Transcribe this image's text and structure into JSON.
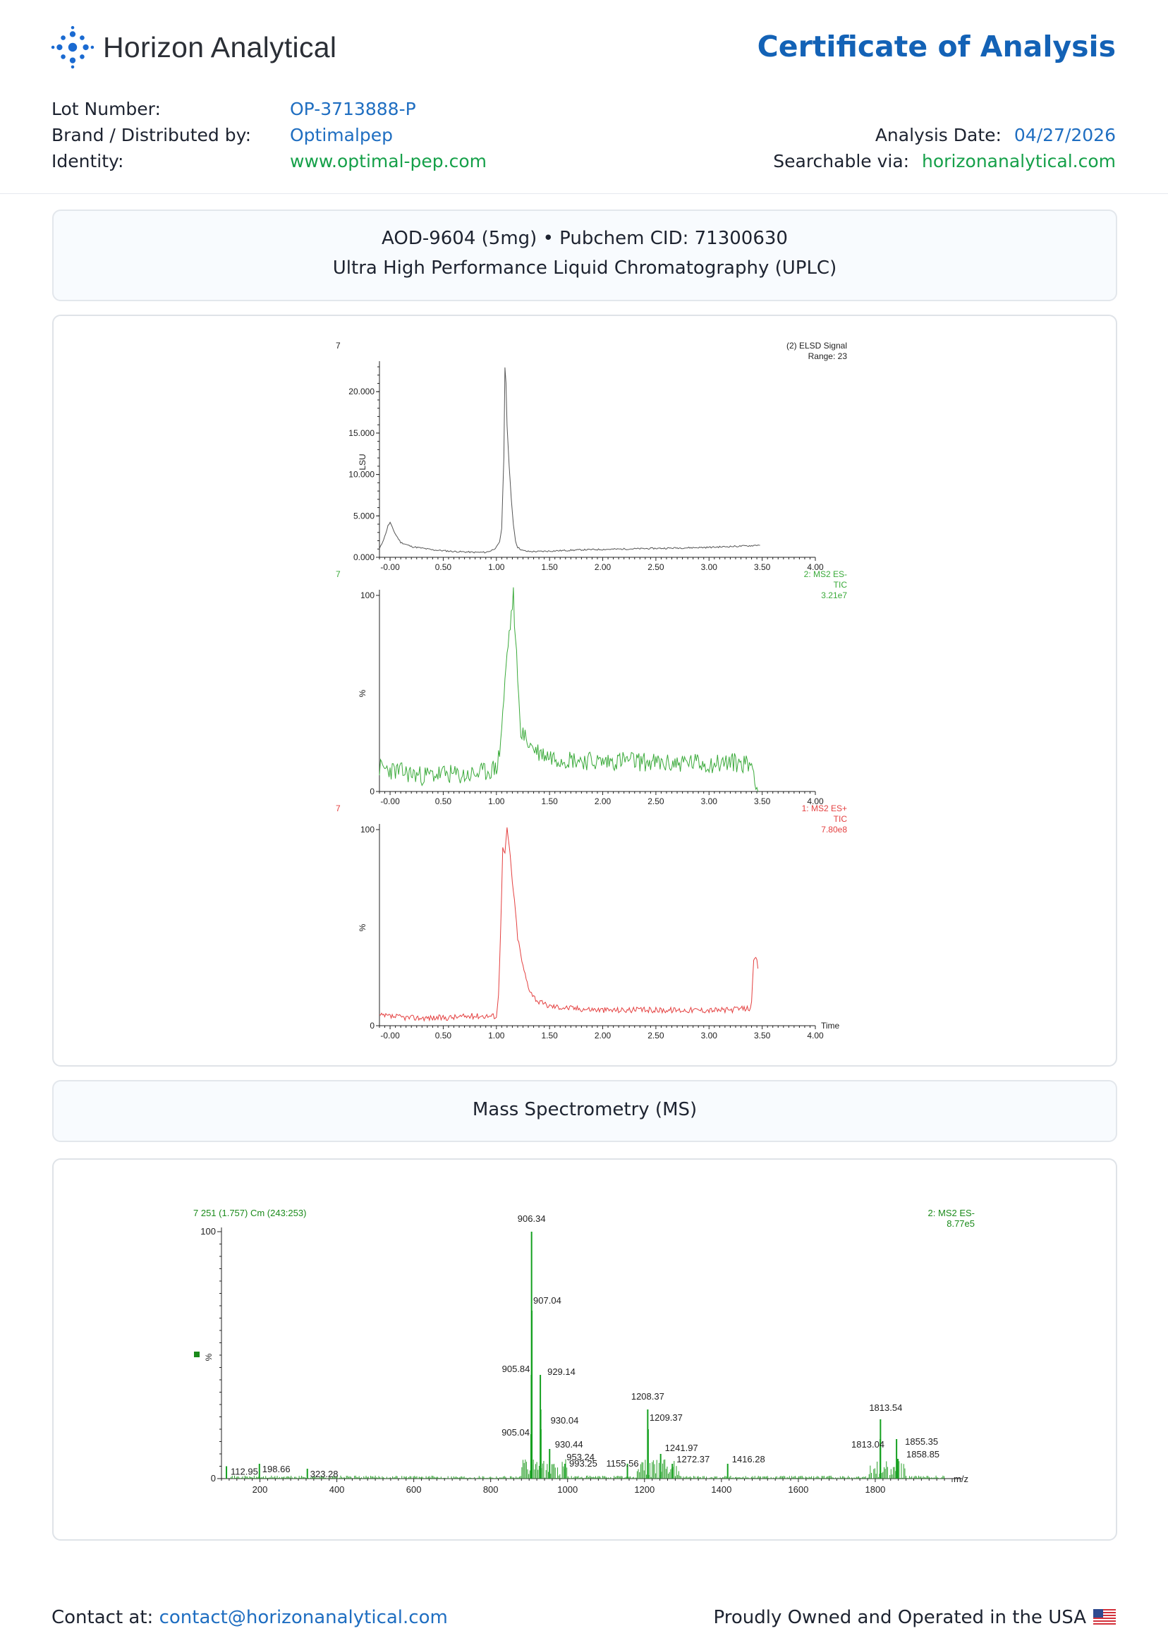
{
  "header": {
    "brand_name": "Horizon Analytical",
    "title": "Certificate of Analysis",
    "lot_label": "Lot Number:",
    "lot_value": "OP-3713888-P",
    "brand_label": "Brand / Distributed by:",
    "brand_value": "Optimalpep",
    "identity_label": "Identity:",
    "identity_value": "www.optimal-pep.com",
    "date_label": "Analysis Date:",
    "date_value": "04/27/2026",
    "search_label": "Searchable via:",
    "search_value": "horizonanalytical.com"
  },
  "uplc_box": {
    "line1": "AOD-9604 (5mg) • Pubchem CID: 71300630",
    "line2": "Ultra High Performance Liquid Chromatography (UPLC)"
  },
  "ms_box": {
    "title": "Mass Spectrometry (MS)"
  },
  "footer": {
    "contact_label": "Contact at:",
    "contact_email": "contact@horizonanalytical.com",
    "owned_text": "Proudly Owned and Operated in the USA"
  },
  "colors": {
    "accent": "#1362b6",
    "green": "#15a049",
    "ms_green": "#15a020",
    "tic_red": "#e02020"
  },
  "chart_data": [
    {
      "type": "line",
      "sample_label": "7",
      "legend": [
        "(2) ELSD Signal",
        "Range: 23"
      ],
      "ylabel": "LSU",
      "xlim": [
        -0.1,
        4.0
      ],
      "ylim": [
        0,
        23000
      ],
      "x_ticks": [
        "-0.00",
        "0.50",
        "1.00",
        "1.50",
        "2.00",
        "2.50",
        "3.00",
        "3.50",
        "4.00"
      ],
      "y_ticks": [
        "0.000",
        "5.000",
        "10.000",
        "15.000",
        "20.000"
      ],
      "x": [
        -0.1,
        -0.05,
        -0.02,
        0.0,
        0.02,
        0.05,
        0.1,
        0.2,
        0.3,
        0.4,
        0.5,
        0.6,
        0.7,
        0.8,
        0.9,
        0.95,
        1.0,
        1.03,
        1.05,
        1.07,
        1.08,
        1.09,
        1.1,
        1.12,
        1.14,
        1.16,
        1.18,
        1.2,
        1.25,
        1.3,
        1.4,
        1.6,
        1.8,
        2.0,
        2.2,
        2.4,
        2.6,
        2.8,
        3.0,
        3.2,
        3.4,
        3.48
      ],
      "y": [
        1000,
        2500,
        3800,
        4200,
        3600,
        2800,
        1800,
        1300,
        1100,
        900,
        800,
        700,
        650,
        600,
        600,
        800,
        1200,
        1800,
        3500,
        12000,
        23000,
        21000,
        16000,
        11000,
        7000,
        4000,
        2000,
        1200,
        800,
        700,
        700,
        800,
        900,
        950,
        1000,
        1050,
        1100,
        1150,
        1200,
        1300,
        1400,
        1500
      ]
    },
    {
      "type": "line",
      "sample_label": "7",
      "legend": [
        "2: MS2 ES-",
        "TIC",
        "3.21e7"
      ],
      "ylabel": "%",
      "xlim": [
        -0.1,
        4.0
      ],
      "ylim": [
        0,
        100
      ],
      "x_ticks": [
        "-0.00",
        "0.50",
        "1.00",
        "1.50",
        "2.00",
        "2.50",
        "3.00",
        "3.50",
        "4.00"
      ],
      "y_ticks": [
        "0",
        "100"
      ],
      "x": [
        -0.1,
        0.1,
        0.3,
        0.5,
        0.7,
        0.9,
        1.0,
        1.03,
        1.06,
        1.08,
        1.1,
        1.12,
        1.14,
        1.16,
        1.18,
        1.2,
        1.22,
        1.24,
        1.26,
        1.3,
        1.35,
        1.4,
        1.5,
        1.6,
        1.8,
        2.0,
        2.2,
        2.4,
        2.6,
        2.8,
        3.0,
        3.2,
        3.4,
        3.44,
        3.46
      ],
      "y": [
        12,
        10,
        8,
        9,
        8,
        10,
        12,
        20,
        40,
        55,
        70,
        80,
        90,
        100,
        75,
        60,
        35,
        30,
        28,
        25,
        22,
        20,
        18,
        17,
        16,
        15,
        16,
        15,
        14,
        15,
        14,
        15,
        14,
        6,
        0
      ]
    },
    {
      "type": "line",
      "sample_label": "7",
      "legend": [
        "1: MS2 ES+",
        "TIC",
        "7.80e8"
      ],
      "ylabel": "%",
      "xlabel": "Time",
      "xlim": [
        -0.1,
        4.0
      ],
      "ylim": [
        0,
        100
      ],
      "x_ticks": [
        "-0.00",
        "0.50",
        "1.00",
        "1.50",
        "2.00",
        "2.50",
        "3.00",
        "3.50",
        "4.00"
      ],
      "y_ticks": [
        "0",
        "100"
      ],
      "x": [
        -0.1,
        0.2,
        0.5,
        0.8,
        1.0,
        1.02,
        1.04,
        1.06,
        1.08,
        1.1,
        1.12,
        1.14,
        1.16,
        1.18,
        1.2,
        1.25,
        1.3,
        1.35,
        1.4,
        1.5,
        1.7,
        2.0,
        2.3,
        2.6,
        2.9,
        3.2,
        3.38,
        3.4,
        3.42,
        3.44,
        3.46
      ],
      "y": [
        5,
        4,
        4,
        5,
        5,
        15,
        50,
        90,
        88,
        100,
        92,
        80,
        68,
        58,
        45,
        30,
        20,
        15,
        12,
        10,
        9,
        8,
        8,
        8,
        8,
        8,
        9,
        12,
        32,
        35,
        30
      ]
    },
    {
      "type": "bar",
      "header_left": "7 251 (1.757) Cm (243:253)",
      "legend": [
        "2: MS2 ES-",
        "8.77e5"
      ],
      "ylabel": "%",
      "xlabel": "m/z",
      "xlim": [
        100,
        2000
      ],
      "ylim": [
        0,
        100
      ],
      "x_ticks": [
        "200",
        "400",
        "600",
        "800",
        "1000",
        "1200",
        "1400",
        "1600",
        "1800"
      ],
      "y_ticks": [
        "0",
        "100"
      ],
      "peaks_mz": [
        112.95,
        198.66,
        323.28,
        905.04,
        905.84,
        906.34,
        907.04,
        929.14,
        930.04,
        930.44,
        953.24,
        993.25,
        1155.56,
        1208.37,
        1209.37,
        1241.97,
        1272.37,
        1416.28,
        1813.04,
        1813.54,
        1855.35,
        1858.85
      ],
      "peaks_int": [
        5,
        6,
        4,
        18,
        42,
        100,
        68,
        42,
        28,
        20,
        12,
        6,
        6,
        28,
        20,
        10,
        6,
        6,
        16,
        24,
        16,
        8
      ],
      "labels": [
        "112.95",
        "198.66",
        "323.28",
        "905.04",
        "905.84",
        "906.34",
        "907.04",
        "929.14",
        "930.04",
        "930.44",
        "953.24",
        "993.25",
        "1155.56",
        "1208.37",
        "1209.37",
        "1241.97",
        "1272.37",
        "1416.28",
        "1813.04",
        "1813.54",
        "1855.35",
        "1858.85"
      ]
    }
  ]
}
